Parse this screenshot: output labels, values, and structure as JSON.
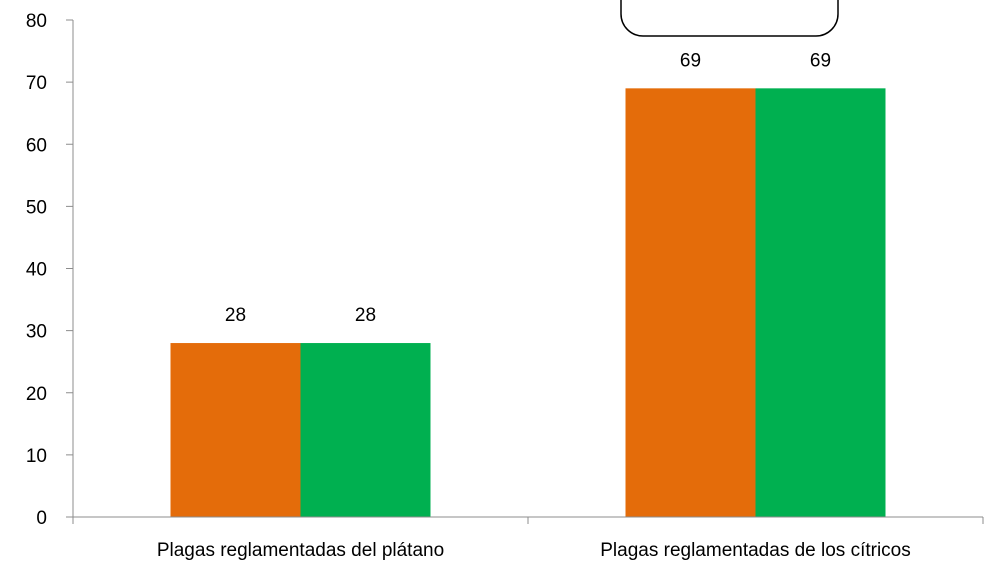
{
  "chart_data": {
    "type": "bar",
    "categories": [
      "Plagas reglamentadas del plátano",
      "Plagas reglamentadas de los cítricos"
    ],
    "series": [
      {
        "values": [
          28,
          69
        ],
        "color": "#e46c0a"
      },
      {
        "values": [
          28,
          69
        ],
        "color": "#00b050"
      }
    ],
    "data_labels": [
      [
        "28",
        "69"
      ],
      [
        "28",
        "69"
      ]
    ],
    "ylim": [
      0,
      80
    ],
    "yticks": [
      0,
      10,
      20,
      30,
      40,
      50,
      60,
      70,
      80
    ],
    "ytick_labels": [
      "0",
      "10",
      "20",
      "30",
      "40",
      "50",
      "60",
      "70",
      "80"
    ],
    "title": "",
    "xlabel": "",
    "ylabel": "",
    "grid": false,
    "legend": "top-right"
  }
}
